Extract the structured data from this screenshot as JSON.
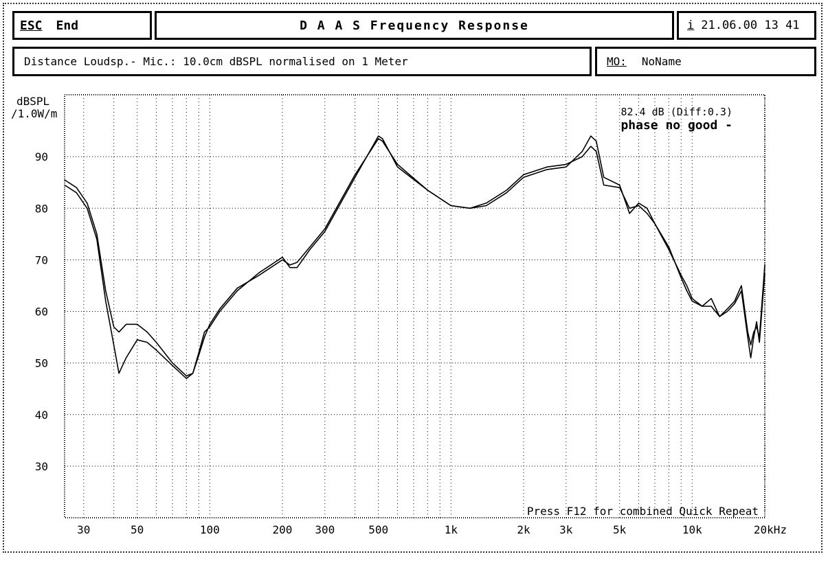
{
  "header": {
    "esc_label": "ESC",
    "end_label": "End",
    "title": "D A A S  Frequency Response",
    "info_icon": "i",
    "datetime": "21.06.00 13 41"
  },
  "subheader": {
    "description": "Distance Loudsp.- Mic.: 10.0cm dBSPL normalised on 1 Meter",
    "mo_label": "MO:",
    "mo_value": "NoName"
  },
  "chart_data": {
    "type": "line",
    "ylabel": [
      "dBSPL",
      "/1.0W/m"
    ],
    "xlabel": "",
    "x_scale": "log",
    "xlim": [
      25,
      20000
    ],
    "ylim": [
      20,
      102
    ],
    "x_ticks": [
      {
        "v": 30,
        "label": "30"
      },
      {
        "v": 50,
        "label": "50"
      },
      {
        "v": 100,
        "label": "100"
      },
      {
        "v": 200,
        "label": "200"
      },
      {
        "v": 300,
        "label": "300"
      },
      {
        "v": 500,
        "label": "500"
      },
      {
        "v": 1000,
        "label": "1k"
      },
      {
        "v": 2000,
        "label": "2k"
      },
      {
        "v": 3000,
        "label": "3k"
      },
      {
        "v": 5000,
        "label": "5k"
      },
      {
        "v": 10000,
        "label": "10k"
      },
      {
        "v": 20000,
        "label": "20kHz"
      }
    ],
    "y_ticks": [
      30,
      40,
      50,
      60,
      70,
      80,
      90
    ],
    "grid": true,
    "annotations": {
      "level": "82.4 dB (Diff:0.3)",
      "status": "phase no good -",
      "footer": "Press F12 for combined Quick Repeat"
    },
    "series": [
      {
        "x": [
          25,
          28,
          31,
          34,
          37,
          40,
          42,
          45,
          50,
          55,
          60,
          70,
          80,
          85,
          90,
          95,
          100,
          110,
          130,
          160,
          200,
          215,
          230,
          260,
          300,
          400,
          500,
          520,
          600,
          800,
          1000,
          1200,
          1400,
          1700,
          2000,
          2500,
          3000,
          3500,
          3800,
          4000,
          4300,
          5000,
          5500,
          6000,
          6500,
          7000,
          8000,
          9000,
          9500,
          10000,
          11000,
          12000,
          13000,
          14000,
          15000,
          16000,
          17000,
          17500,
          18000,
          18500,
          19000,
          20000
        ],
        "y": [
          84.5,
          83,
          80,
          74,
          62,
          53.5,
          48,
          51,
          54.5,
          54,
          52.5,
          49.5,
          47,
          48,
          52,
          56,
          57,
          60,
          64,
          67.5,
          70.5,
          68.5,
          68.5,
          72,
          75.5,
          86,
          94,
          93.5,
          88,
          83.5,
          80.5,
          80,
          80.5,
          83,
          86,
          87.5,
          88,
          91,
          94,
          93,
          86,
          84.5,
          79,
          81,
          80,
          77,
          72.5,
          66.5,
          64,
          62,
          61,
          62.5,
          59,
          60,
          61.5,
          64,
          55,
          51,
          55,
          58,
          54,
          67.5
        ]
      },
      {
        "x": [
          25,
          28,
          31,
          34,
          37,
          40,
          42,
          45,
          50,
          55,
          60,
          70,
          80,
          85,
          90,
          95,
          100,
          110,
          130,
          160,
          200,
          215,
          230,
          260,
          300,
          400,
          500,
          520,
          600,
          800,
          1000,
          1200,
          1400,
          1700,
          2000,
          2500,
          3000,
          3500,
          3800,
          4000,
          4300,
          5000,
          5500,
          6000,
          6500,
          7000,
          8000,
          9000,
          9500,
          10000,
          11000,
          12000,
          13000,
          14000,
          15000,
          16000,
          17000,
          17500,
          18000,
          18500,
          19000,
          20000
        ],
        "y": [
          85.5,
          84,
          81,
          75,
          64,
          57,
          56,
          57.5,
          57.5,
          56,
          54,
          50,
          47.5,
          48,
          51.5,
          55,
          57.5,
          60.5,
          64.5,
          67,
          70,
          69,
          69.5,
          72.5,
          76,
          86.5,
          93.5,
          93,
          88.5,
          83.5,
          80.5,
          80,
          81,
          83.5,
          86.5,
          88,
          88.5,
          90,
          92,
          91,
          84.5,
          84,
          80,
          80.5,
          79,
          77,
          72,
          67,
          65,
          62.5,
          61,
          61,
          59,
          60.5,
          62,
          65,
          56,
          53.5,
          56,
          57,
          55,
          69
        ]
      }
    ]
  }
}
